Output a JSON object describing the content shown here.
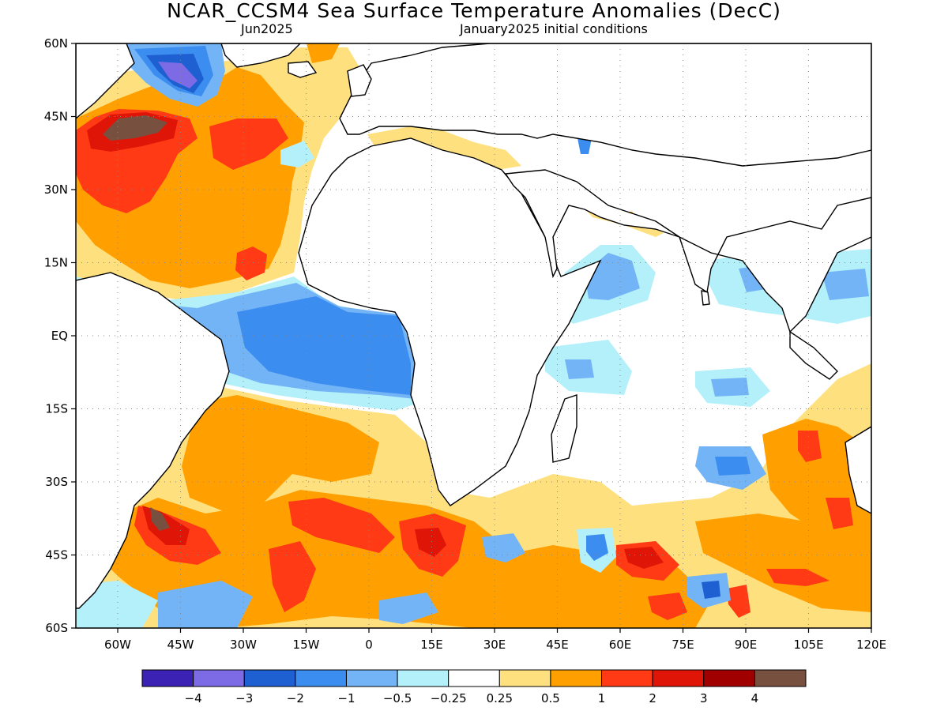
{
  "title": "NCAR_CCSM4 Sea Surface Temperature Anomalies (DecC)",
  "subtitle_left": "Jun2025",
  "subtitle_right": "January2025 initial conditions",
  "map": {
    "region": "Atlantic and Indian Ocean",
    "lat_range": [
      -60,
      60
    ],
    "lon_range": [
      -70,
      120
    ],
    "lat_ticks": [
      "60N",
      "45N",
      "30N",
      "15N",
      "EQ",
      "15S",
      "30S",
      "45S",
      "60S"
    ],
    "lon_ticks": [
      "60W",
      "45W",
      "30W",
      "15W",
      "0",
      "15E",
      "30E",
      "45E",
      "60E",
      "75E",
      "90E",
      "105E",
      "120E"
    ],
    "grid": "dotted"
  },
  "colorbar": {
    "colors": [
      "#3b22b4",
      "#7d6be6",
      "#1e5fd2",
      "#3c8df0",
      "#73b4f7",
      "#b4f0fa",
      "#ffffff",
      "#ffe07e",
      "#ffa000",
      "#ff3a14",
      "#df1508",
      "#a00000",
      "#785040"
    ],
    "labels": [
      "−4",
      "−3",
      "−2",
      "−1",
      "−0.5",
      "−0.25",
      "0.25",
      "0.5",
      "1",
      "2",
      "3",
      "4"
    ]
  },
  "colors": {
    "land": "#ffffff",
    "coast": "#000000",
    "warm_1": "#ffe07e",
    "warm_2": "#ffa000",
    "warm_3": "#ff3a14",
    "warm_4": "#df1508",
    "warm_5": "#a00000",
    "warm_6": "#785040",
    "cool_1": "#b4f0fa",
    "cool_2": "#73b4f7",
    "cool_3": "#3c8df0",
    "cool_4": "#1e5fd2",
    "cool_5": "#7d6be6"
  }
}
